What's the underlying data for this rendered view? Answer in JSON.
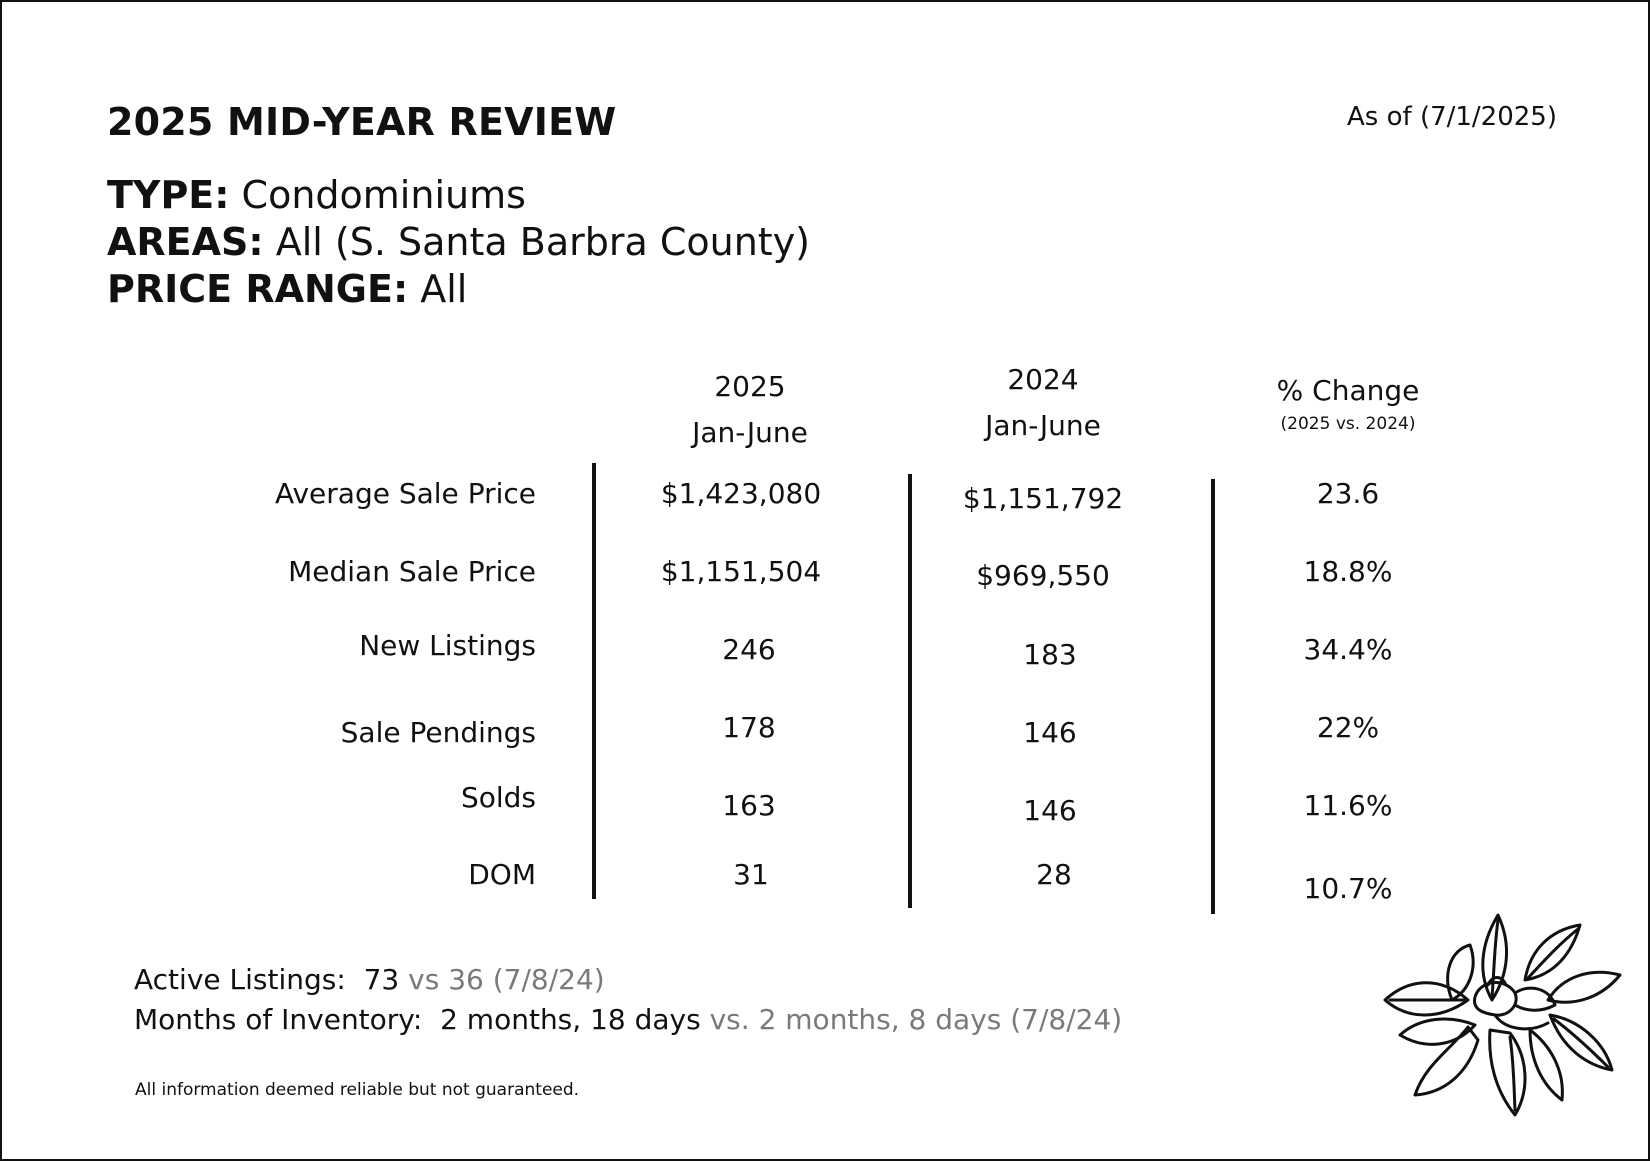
{
  "header": {
    "title": "2025 MID-YEAR REVIEW",
    "as_of": "As of (7/1/2025)"
  },
  "meta": {
    "type_label": "TYPE:",
    "type_value": "Condominiums",
    "areas_label": "AREAS:",
    "areas_value": "All (S. Santa Barbra County)",
    "price_label": "PRICE RANGE:",
    "price_value": "All"
  },
  "table": {
    "columns": [
      {
        "line1": "2025",
        "line2": "Jan-June"
      },
      {
        "line1": "2024",
        "line2": "Jan-June"
      },
      {
        "line1": "% Change",
        "line2": "(2025 vs. 2024)"
      }
    ],
    "rows": [
      {
        "label": "Average Sale Price",
        "v2025": "$1,423,080",
        "v2024": "$1,151,792",
        "change": "23.6"
      },
      {
        "label": "Median Sale Price",
        "v2025": "$1,151,504",
        "v2024": "$969,550",
        "change": "18.8%"
      },
      {
        "label": "New Listings",
        "v2025": "246",
        "v2024": "183",
        "change": "34.4%"
      },
      {
        "label": "Sale Pendings",
        "v2025": "178",
        "v2024": "146",
        "change": "22%"
      },
      {
        "label": "Solds",
        "v2025": "163",
        "v2024": "146",
        "change": "11.6%"
      },
      {
        "label": "DOM",
        "v2025": "31",
        "v2024": "28",
        "change": "10.7%"
      }
    ]
  },
  "footer": {
    "active_label": "Active Listings:",
    "active_value": "73",
    "active_compare": "vs 36 (7/8/24)",
    "inventory_label": "Months of Inventory:",
    "inventory_value": "2 months, 18 days",
    "inventory_compare": "vs. 2 months, 8 days (7/8/24)",
    "disclaimer": "All information deemed reliable but not guaranteed."
  },
  "decor": {
    "flower_icon": "magnolia-flower-icon"
  }
}
